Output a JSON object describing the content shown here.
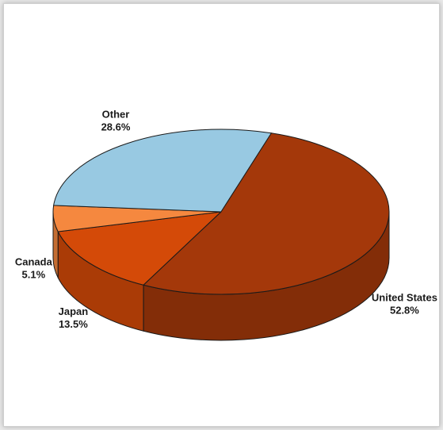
{
  "chart_data": {
    "type": "pie",
    "style": "3d",
    "title": "",
    "slices": [
      {
        "label": "Japan",
        "percent_label": "13.5%",
        "value": 13.5,
        "color": "#d44a08"
      },
      {
        "label": "Canada",
        "percent_label": "5.1%",
        "value": 5.1,
        "color": "#f5883f"
      },
      {
        "label": "Other",
        "percent_label": "28.6%",
        "value": 28.6,
        "color": "#98c9e2"
      },
      {
        "label": "United States",
        "percent_label": "52.8%",
        "value": 52.8,
        "color": "#a4380a"
      }
    ],
    "legend": "none"
  }
}
